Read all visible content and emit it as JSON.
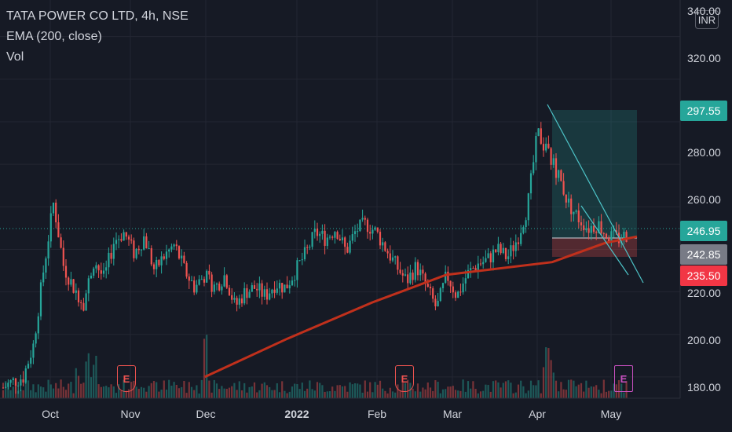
{
  "legend": {
    "title": "TATA POWER CO LTD, 4h, NSE",
    "ema": "EMA (200, close)",
    "vol": "Vol"
  },
  "currency_button": "INR",
  "y_axis_ticks": [
    "340.00",
    "320.00",
    "300.00",
    "280.00",
    "260.00",
    "240.00",
    "220.00",
    "200.00",
    "180.00"
  ],
  "x_axis_ticks": [
    "Oct",
    "Nov",
    "Dec",
    "2022",
    "Feb",
    "Mar",
    "Apr",
    "May"
  ],
  "price_tags": {
    "target": {
      "label": "297.55",
      "color": "#26a69a"
    },
    "last": {
      "label": "246.95",
      "color": "#26a69a"
    },
    "entry": {
      "label": "242.85",
      "color": "#787b86"
    },
    "stop": {
      "label": "235.50",
      "color": "#f23645"
    }
  },
  "earnings_markers": [
    "E",
    "E",
    "E"
  ],
  "colors": {
    "up": "#26a69a",
    "down": "#ef5350",
    "ema": "#c0301c",
    "background": "#161a25",
    "grid": "#232632"
  },
  "chart_data": {
    "type": "candlestick",
    "title": "TATA POWER CO LTD, 4h, NSE",
    "ylim": [
      180,
      345
    ],
    "y_ticks": [
      180,
      200,
      220,
      240,
      260,
      280,
      300,
      320,
      340
    ],
    "x_ticks": [
      "Oct",
      "Nov",
      "Dec",
      "2022",
      "Feb",
      "Mar",
      "Apr",
      "May"
    ],
    "price_path": [
      [
        "Sep",
        175
      ],
      [
        "Sep",
        178
      ],
      [
        "Oct",
        180
      ],
      [
        "Oct",
        195
      ],
      [
        "Oct",
        230
      ],
      [
        "Oct",
        262
      ],
      [
        "Oct",
        232
      ],
      [
        "Oct",
        222
      ],
      [
        "Oct",
        215
      ],
      [
        "Nov",
        235
      ],
      [
        "Nov",
        226
      ],
      [
        "Nov",
        244
      ],
      [
        "Nov",
        248
      ],
      [
        "Nov",
        238
      ],
      [
        "Nov",
        246
      ],
      [
        "Nov",
        230
      ],
      [
        "Nov",
        237
      ],
      [
        "Nov",
        242
      ],
      [
        "Dec",
        230
      ],
      [
        "Dec",
        222
      ],
      [
        "Dec",
        228
      ],
      [
        "Dec",
        222
      ],
      [
        "Dec",
        228
      ],
      [
        "Dec",
        213
      ],
      [
        "Dec",
        220
      ],
      [
        "Dec",
        222
      ],
      [
        "Dec",
        218
      ],
      [
        "Dec",
        224
      ],
      [
        "Dec",
        222
      ],
      [
        "Dec",
        230
      ],
      [
        "2022",
        238
      ],
      [
        "2022",
        248
      ],
      [
        "2022",
        245
      ],
      [
        "2022",
        250
      ],
      [
        "2022",
        239
      ],
      [
        "2022",
        249
      ],
      [
        "Feb",
        252
      ],
      [
        "Feb",
        248
      ],
      [
        "Feb",
        240
      ],
      [
        "Feb",
        232
      ],
      [
        "Feb",
        225
      ],
      [
        "Feb",
        232
      ],
      [
        "Mar",
        222
      ],
      [
        "Mar",
        212
      ],
      [
        "Mar",
        228
      ],
      [
        "Mar",
        218
      ],
      [
        "Mar",
        228
      ],
      [
        "Mar",
        233
      ],
      [
        "Mar",
        235
      ],
      [
        "Apr",
        240
      ],
      [
        "Apr",
        236
      ],
      [
        "Apr",
        245
      ],
      [
        "Apr",
        260
      ],
      [
        "Apr",
        295
      ],
      [
        "Apr",
        285
      ],
      [
        "Apr",
        276
      ],
      [
        "Apr",
        262
      ],
      [
        "Apr",
        255
      ],
      [
        "Apr",
        250
      ],
      [
        "May",
        252
      ],
      [
        "May",
        246
      ],
      [
        "May",
        245
      ],
      [
        "May",
        247
      ]
    ],
    "ema_200": [
      [
        1,
        180
      ],
      [
        40,
        198
      ],
      [
        80,
        215
      ],
      [
        115,
        228
      ],
      [
        140,
        231
      ],
      [
        165,
        234
      ],
      [
        190,
        243
      ],
      [
        205,
        246
      ]
    ],
    "position": {
      "entry": 242.85,
      "target": 297.55,
      "stop": 235.5,
      "last": 246.95
    },
    "series": [
      {
        "name": "EMA (200, close)"
      },
      {
        "name": "Vol"
      }
    ]
  }
}
